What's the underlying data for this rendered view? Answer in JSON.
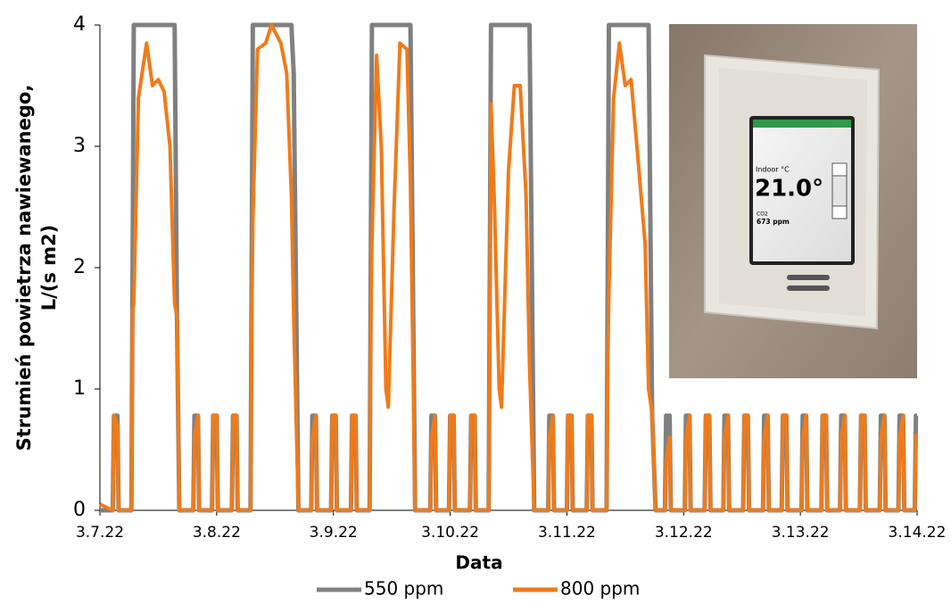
{
  "chart_data": {
    "type": "line",
    "ylabel": [
      "Strumień powietrza nawiewanego,",
      "L/(s m2)"
    ],
    "xlabel": "Data",
    "xlim": [
      0,
      7
    ],
    "xticks": [
      {
        "value": 0,
        "label": "3.7.22"
      },
      {
        "value": 1,
        "label": "3.8.22"
      },
      {
        "value": 2,
        "label": "3.9.22"
      },
      {
        "value": 3,
        "label": "3.10.22"
      },
      {
        "value": 4,
        "label": "3.11.22"
      },
      {
        "value": 5,
        "label": "3.12.22"
      },
      {
        "value": 6,
        "label": "3.13.22"
      },
      {
        "value": 7,
        "label": "3.14.22"
      }
    ],
    "ylim": [
      0,
      4
    ],
    "yticks": [
      0,
      1,
      2,
      3,
      4
    ],
    "legend": "bottom",
    "inset": {
      "temperature_label": "Indoor °C",
      "temperature": "21.0°",
      "co2_label": "CO2",
      "co2": "673 ppm"
    },
    "x": [
      0,
      0.11,
      0.12,
      0.15,
      0.16,
      0.27,
      0.28,
      0.29,
      0.33,
      0.4,
      0.45,
      0.5,
      0.55,
      0.6,
      0.64,
      0.66,
      0.68,
      0.8,
      0.81,
      0.84,
      0.85,
      0.96,
      0.97,
      1.0,
      1.01,
      1.13,
      1.14,
      1.17,
      1.18,
      1.29,
      1.3,
      1.31,
      1.35,
      1.42,
      1.47,
      1.55,
      1.6,
      1.64,
      1.66,
      1.7,
      1.81,
      1.82,
      1.85,
      1.86,
      1.98,
      1.99,
      2.02,
      2.03,
      2.15,
      2.16,
      2.19,
      2.2,
      2.31,
      2.32,
      2.33,
      2.37,
      2.41,
      2.45,
      2.47,
      2.52,
      2.57,
      2.63,
      2.66,
      2.7,
      2.83,
      2.84,
      2.87,
      2.88,
      2.99,
      3.0,
      3.03,
      3.04,
      3.17,
      3.18,
      3.21,
      3.22,
      3.33,
      3.34,
      3.35,
      3.38,
      3.42,
      3.44,
      3.5,
      3.55,
      3.6,
      3.65,
      3.68,
      3.72,
      3.84,
      3.85,
      3.88,
      3.89,
      4.0,
      4.01,
      4.04,
      4.05,
      4.17,
      4.18,
      4.21,
      4.22,
      4.34,
      4.35,
      4.36,
      4.4,
      4.45,
      4.5,
      4.55,
      4.6,
      4.67,
      4.7,
      4.73,
      4.76,
      4.84,
      4.85,
      4.88,
      4.89,
      5.01,
      5.02,
      5.05,
      5.06,
      5.18,
      5.19,
      5.22,
      5.23,
      5.34,
      5.35,
      5.38,
      5.39,
      5.51,
      5.52,
      5.55,
      5.56,
      5.68,
      5.69,
      5.72,
      5.73,
      5.84,
      5.85,
      5.88,
      5.89,
      6.01,
      6.02,
      6.05,
      6.06,
      6.18,
      6.19,
      6.22,
      6.23,
      6.34,
      6.35,
      6.38,
      6.39,
      6.51,
      6.52,
      6.55,
      6.56,
      6.68,
      6.69,
      6.72,
      6.73,
      6.84,
      6.85,
      6.88,
      6.89,
      6.98,
      6.99,
      7.0
    ],
    "series": [
      {
        "name": "550 ppm",
        "color": "#808080",
        "values": [
          0,
          0,
          0.78,
          0.78,
          0,
          0,
          2,
          4,
          4,
          4,
          4,
          4,
          4,
          4,
          4,
          1.6,
          0,
          0,
          0.78,
          0.78,
          0,
          0,
          0.78,
          0.78,
          0,
          0,
          0.78,
          0.78,
          0,
          0,
          2,
          4,
          4,
          4,
          4,
          4,
          4,
          4,
          3.6,
          0,
          0,
          0.78,
          0.78,
          0,
          0,
          0.78,
          0.78,
          0,
          0,
          0.78,
          0.78,
          0,
          0,
          2,
          4,
          4,
          4,
          4,
          4,
          4,
          4,
          4,
          4,
          0,
          0,
          0.78,
          0.78,
          0,
          0,
          0.78,
          0.78,
          0,
          0,
          0.78,
          0.78,
          0,
          0,
          2,
          4,
          4,
          4,
          4,
          4,
          4,
          4,
          4,
          4,
          0,
          0,
          0.78,
          0.78,
          0,
          0,
          0.78,
          0.78,
          0,
          0,
          0.78,
          0.78,
          0,
          0,
          2,
          4,
          4,
          4,
          4,
          4,
          4,
          4,
          4,
          0.8,
          0,
          0,
          0.78,
          0.78,
          0,
          0,
          0.78,
          0.78,
          0,
          0,
          0.78,
          0.78,
          0,
          0,
          0.78,
          0.78,
          0,
          0,
          0.78,
          0.78,
          0,
          0,
          0.78,
          0.78,
          0,
          0,
          0.78,
          0.78,
          0,
          0,
          0.78,
          0.78,
          0,
          0,
          0.78,
          0.78,
          0,
          0,
          0.78,
          0.78,
          0,
          0,
          0.78,
          0.78,
          0,
          0,
          0.78,
          0.78,
          0,
          0,
          0.78,
          0.78,
          0,
          0,
          0.78,
          0.78
        ]
      },
      {
        "name": "800 ppm",
        "color": "#f07b1a",
        "values": [
          0.05,
          0,
          0.78,
          0.7,
          0,
          0,
          1.65,
          1.7,
          3.4,
          3.85,
          3.5,
          3.55,
          3.45,
          3.0,
          1.7,
          1.6,
          0,
          0,
          0.6,
          0.78,
          0,
          0,
          0.78,
          0.78,
          0,
          0,
          0.78,
          0.78,
          0,
          0,
          1.5,
          2.4,
          3.8,
          3.85,
          4.0,
          3.85,
          3.6,
          2.6,
          1.6,
          0,
          0,
          0.6,
          0.78,
          0,
          0,
          0.78,
          0.78,
          0,
          0,
          0.78,
          0.78,
          0,
          0,
          1.5,
          2.2,
          3.75,
          3.0,
          1.0,
          0.85,
          2.5,
          3.85,
          3.8,
          2.7,
          0,
          0,
          0.6,
          0.78,
          0,
          0,
          0.78,
          0.78,
          0,
          0,
          0.78,
          0.78,
          0,
          0,
          1.5,
          3.35,
          2.5,
          1.0,
          0.85,
          2.8,
          3.5,
          3.5,
          2.6,
          1.2,
          0,
          0,
          0.6,
          0.78,
          0,
          0,
          0.78,
          0.78,
          0,
          0,
          0.78,
          0.78,
          0,
          0,
          1.2,
          1.8,
          3.4,
          3.85,
          3.5,
          3.55,
          3.0,
          2.2,
          1.0,
          0.8,
          0,
          0,
          0.4,
          0.6,
          0,
          0,
          0.6,
          0.78,
          0,
          0,
          0.78,
          0.78,
          0,
          0,
          0.6,
          0.78,
          0,
          0,
          0.78,
          0.78,
          0,
          0,
          0.6,
          0.78,
          0,
          0,
          0.78,
          0.78,
          0,
          0,
          0.6,
          0.78,
          0,
          0,
          0.78,
          0.78,
          0,
          0,
          0.6,
          0.78,
          0,
          0,
          0.78,
          0.78,
          0,
          0,
          0.6,
          0.78,
          0,
          0,
          0.6,
          0.78,
          0,
          0,
          0.62,
          0.62
        ]
      }
    ]
  }
}
